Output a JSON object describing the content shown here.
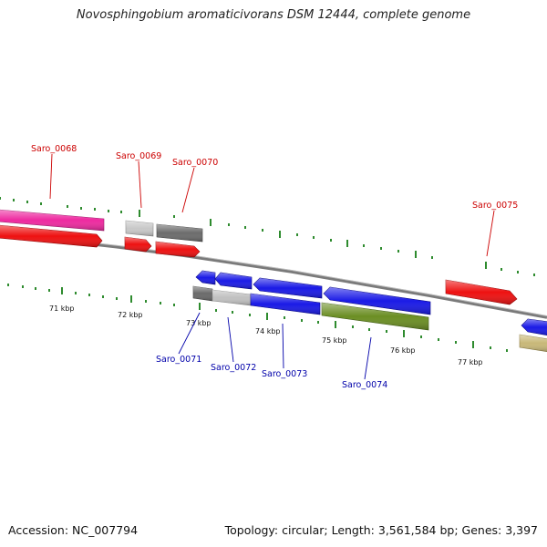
{
  "title": "Novosphingobium aromaticivorans DSM 12444, complete genome",
  "footer": {
    "accession": "Accession: NC_007794",
    "summary": "Topology: circular; Length: 3,561,584 bp; Genes: 3,397"
  },
  "colors": {
    "forward_label": "#cc0000",
    "reverse_label": "#0000aa",
    "tick": "#228b22",
    "backbone": "#888888"
  },
  "kbp_labels": [
    "71 kbp",
    "72 kbp",
    "73 kbp",
    "74 kbp",
    "75 kbp",
    "76 kbp",
    "77 kbp"
  ],
  "gene_labels": [
    {
      "name": "Saro_0068",
      "strand": "forward"
    },
    {
      "name": "Saro_0069",
      "strand": "forward"
    },
    {
      "name": "Saro_0070",
      "strand": "forward"
    },
    {
      "name": "Saro_0075",
      "strand": "forward"
    },
    {
      "name": "Saro_0071",
      "strand": "reverse"
    },
    {
      "name": "Saro_0072",
      "strand": "reverse"
    },
    {
      "name": "Saro_0073",
      "strand": "reverse"
    },
    {
      "name": "Saro_0074",
      "strand": "reverse"
    }
  ]
}
